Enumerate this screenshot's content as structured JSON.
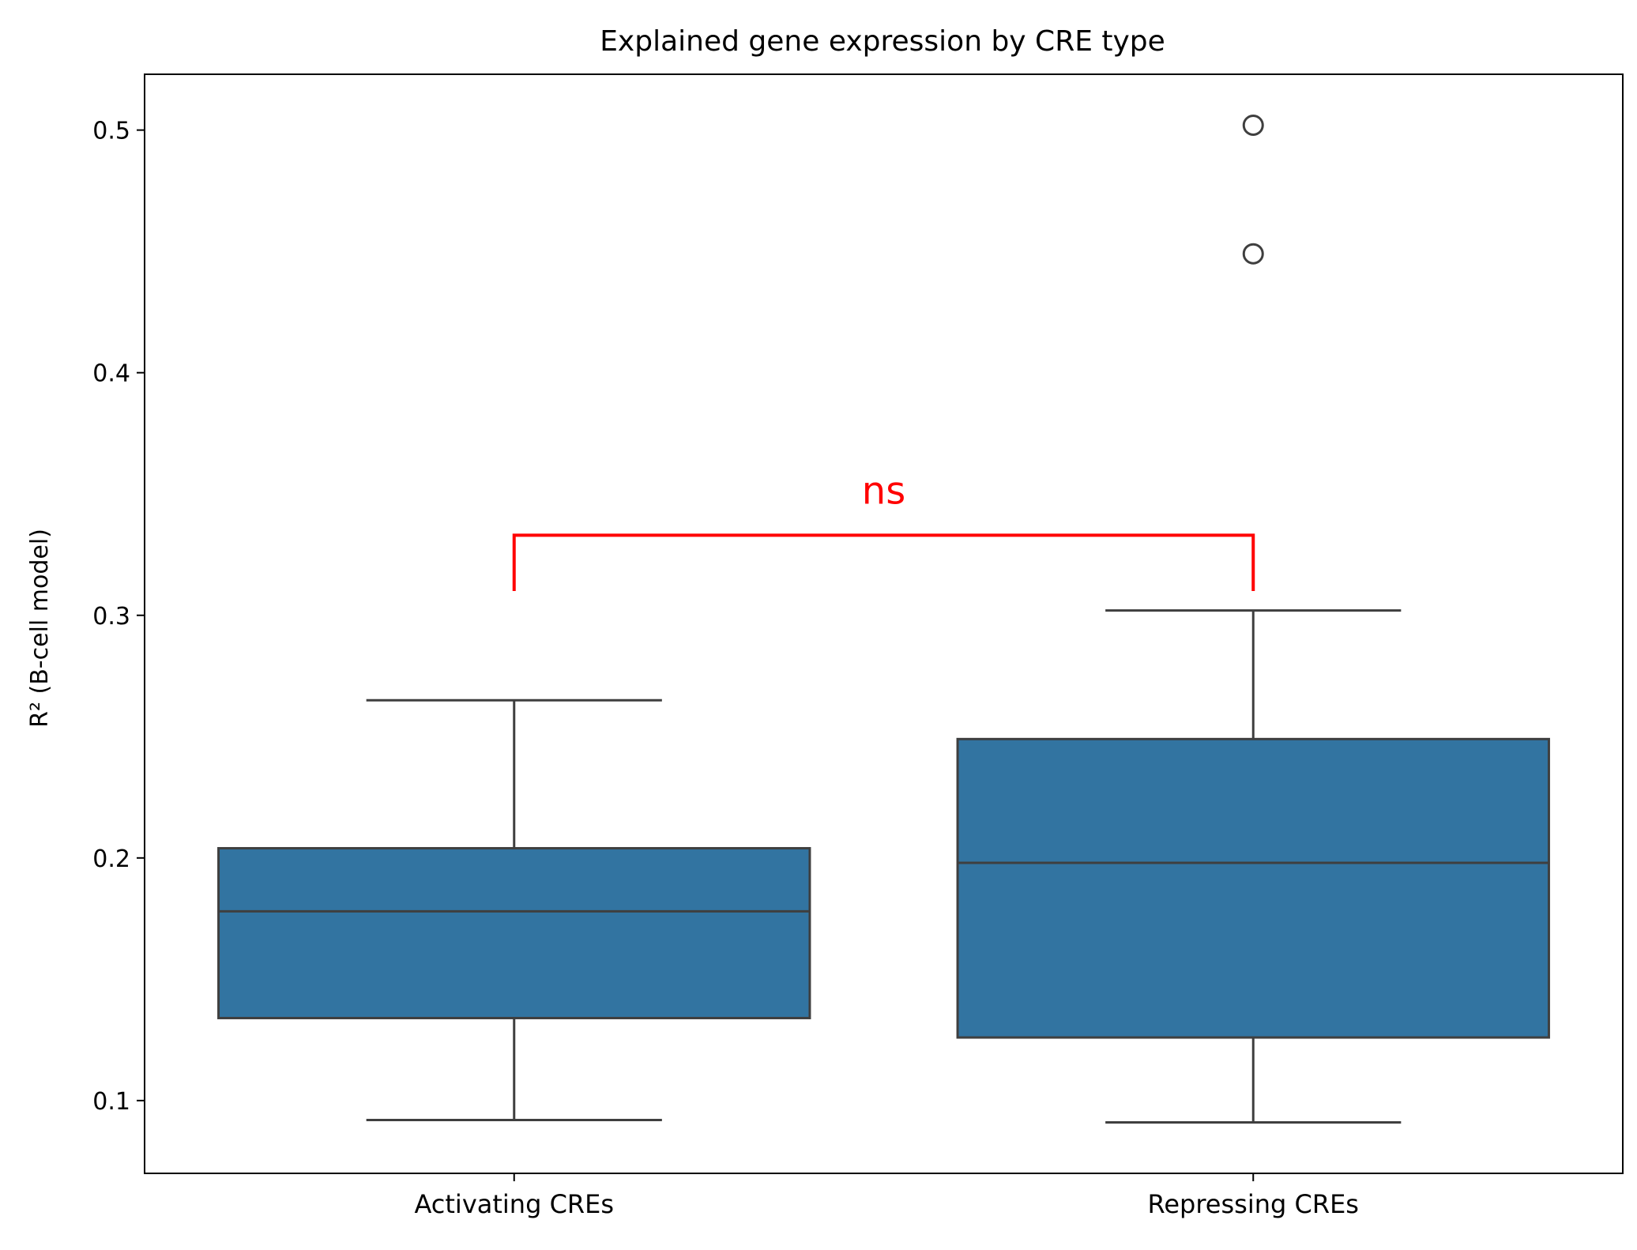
{
  "chart_data": {
    "type": "box",
    "title": "Explained gene expression by CRE type",
    "xlabel": "",
    "ylabel": "R² (B-cell model)",
    "categories": [
      "Activating CREs",
      "Repressing CREs"
    ],
    "yticks": [
      "0.1",
      "0.2",
      "0.3",
      "0.4",
      "0.5"
    ],
    "ylim": [
      0.07,
      0.523
    ],
    "grid": false,
    "boxes": [
      {
        "category": "Activating CREs",
        "whisker_low": 0.092,
        "q1": 0.134,
        "median": 0.178,
        "q3": 0.204,
        "whisker_high": 0.265,
        "outliers": []
      },
      {
        "category": "Repressing CREs",
        "whisker_low": 0.091,
        "q1": 0.126,
        "median": 0.198,
        "q3": 0.249,
        "whisker_high": 0.302,
        "outliers": [
          0.449,
          0.502
        ]
      }
    ],
    "significance": {
      "label": "ns",
      "between": [
        "Activating CREs",
        "Repressing CREs"
      ],
      "bracket_bottom": 0.31,
      "bracket_top": 0.333,
      "color": "#ff0000"
    },
    "colors": {
      "box_fill": "#3274a1",
      "line": "#3f3f3f",
      "annotation": "#ff0000"
    }
  }
}
